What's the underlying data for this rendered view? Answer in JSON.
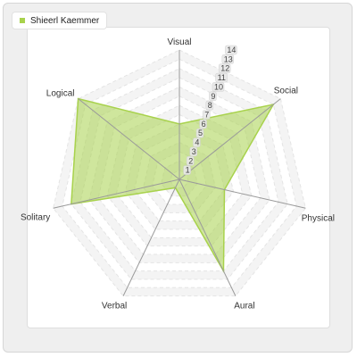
{
  "chart_data": {
    "type": "radar",
    "axes": [
      "Visual",
      "Social",
      "Physical",
      "Aural",
      "Verbal",
      "Solitary",
      "Logical"
    ],
    "series": [
      {
        "name": "Shieerl Kaemmer",
        "values": [
          6,
          13,
          5,
          11,
          1,
          12,
          14
        ],
        "color": "#a8d24c"
      }
    ],
    "rlim": [
      0,
      14
    ],
    "ticks": [
      "1",
      "2",
      "3",
      "4",
      "5",
      "6",
      "7",
      "8",
      "9",
      "10",
      "11",
      "12",
      "13",
      "14"
    ],
    "legend_position": "top-left",
    "grid": true
  }
}
